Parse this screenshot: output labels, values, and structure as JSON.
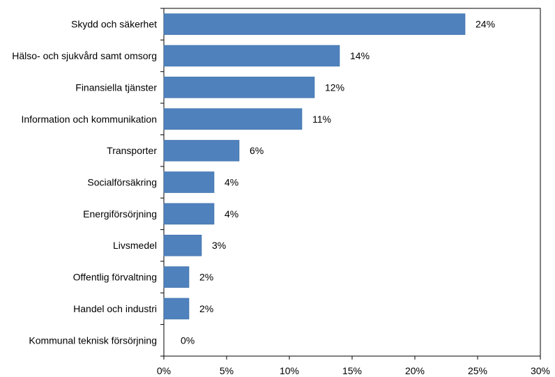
{
  "chart_data": {
    "type": "bar",
    "orientation": "horizontal",
    "categories": [
      "Skydd och säkerhet",
      "Hälso- och sjukvård samt omsorg",
      "Finansiella tjänster",
      "Information och kommunikation",
      "Transporter",
      "Socialförsäkring",
      "Energiförsörjning",
      "Livsmedel",
      "Offentlig förvaltning",
      "Handel och industri",
      "Kommunal teknisk försörjning"
    ],
    "values": [
      24,
      14,
      12,
      11,
      6,
      4,
      4,
      3,
      2,
      2,
      0
    ],
    "data_labels": [
      "24%",
      "14%",
      "12%",
      "11%",
      "6%",
      "4%",
      "4%",
      "3%",
      "2%",
      "2%",
      "0%"
    ],
    "xlim": [
      0,
      30
    ],
    "xticks": [
      0,
      5,
      10,
      15,
      20,
      25,
      30
    ],
    "xtick_labels": [
      "0%",
      "5%",
      "10%",
      "15%",
      "20%",
      "25%",
      "30%"
    ],
    "title": "",
    "xlabel": "",
    "ylabel": "",
    "grid": false,
    "legend": "none",
    "bar_color": "#4f81bd"
  }
}
